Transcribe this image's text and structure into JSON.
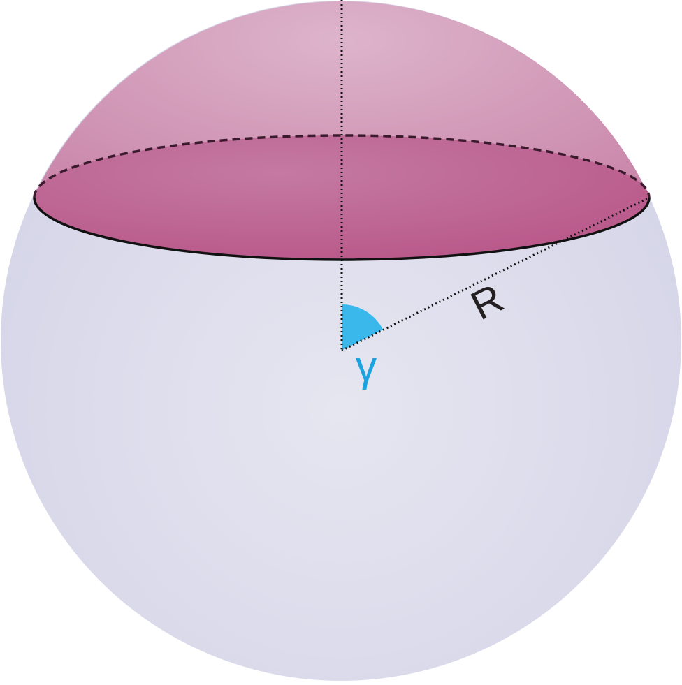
{
  "diagram": {
    "radius_label": "R",
    "angle_label": "γ"
  },
  "colors": {
    "sphere_center": "#e6e6f1",
    "sphere_edge": "#d6d6e9",
    "cap_center": "#ddb4cb",
    "cap_edge": "#cc88ab",
    "base_disk": "#bf6f99",
    "base_disk_dark": "#b9588a",
    "angle_fill": "#3ab8ec",
    "angle_label": "#1aa3e0",
    "line": "#111111",
    "label_text": "#231f20"
  }
}
